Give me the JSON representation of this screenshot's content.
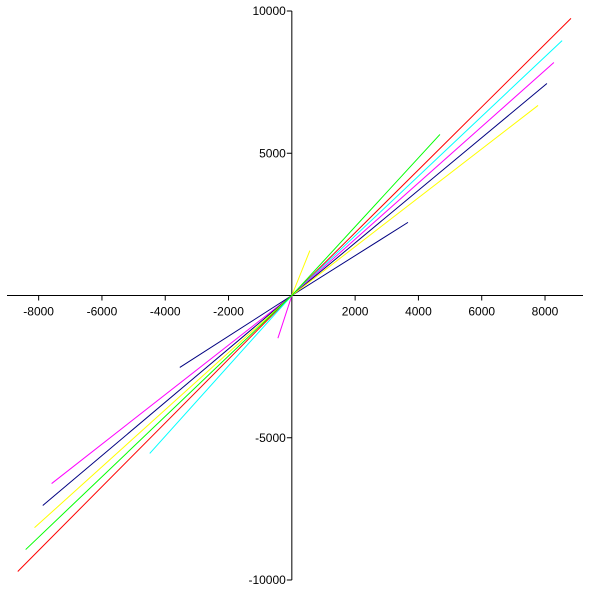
{
  "chart_data": {
    "type": "line",
    "xlim": [
      -9000,
      9200
    ],
    "ylim": [
      -10000,
      10000
    ],
    "xticks": [
      -8000,
      -6000,
      -4000,
      -2000,
      2000,
      4000,
      6000,
      8000
    ],
    "yticks": [
      -10000,
      -5000,
      5000,
      10000
    ],
    "series": [
      {
        "color": "#ff0000",
        "x": [
          -8660,
          0,
          8820
        ],
        "values": [
          -9700,
          0,
          9740
        ]
      },
      {
        "color": "#00ffff",
        "x": [
          -4490,
          0,
          8540
        ],
        "values": [
          -5550,
          0,
          8960
        ]
      },
      {
        "color": "#ff00ff",
        "x": [
          -7590,
          0,
          8280
        ],
        "values": [
          -6610,
          0,
          8190
        ]
      },
      {
        "color": "#ff00ff",
        "x": [
          -440,
          0
        ],
        "values": [
          -1500,
          0
        ]
      },
      {
        "color": "#000080",
        "x": [
          -7870,
          0,
          8060
        ],
        "values": [
          -7380,
          0,
          7450
        ]
      },
      {
        "color": "#000080",
        "x": [
          -3540,
          0,
          3670
        ],
        "values": [
          -2530,
          0,
          2570
        ]
      },
      {
        "color": "#ffff00",
        "x": [
          -8130,
          0,
          7780
        ],
        "values": [
          -8160,
          0,
          6680
        ]
      },
      {
        "color": "#ffff00",
        "x": [
          0,
          570
        ],
        "values": [
          0,
          1580
        ]
      },
      {
        "color": "#00ff00",
        "x": [
          -8410,
          0,
          4680
        ],
        "values": [
          -8930,
          0,
          5660
        ]
      }
    ]
  }
}
